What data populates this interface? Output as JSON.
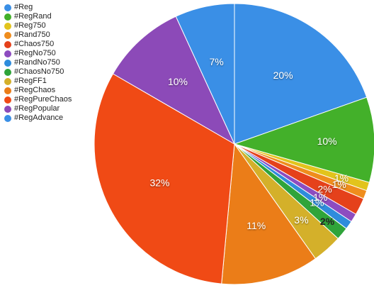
{
  "chart_data": {
    "type": "pie",
    "title": "",
    "legend_position": "top-left",
    "slices": [
      {
        "name": "#Reg",
        "label": "20%",
        "value": 20,
        "color": "#3a8fe6"
      },
      {
        "name": "#RegRand",
        "label": "10%",
        "value": 10,
        "color": "#43b02a"
      },
      {
        "name": "#Reg750",
        "label": "1%",
        "value": 1,
        "color": "#e2c41c"
      },
      {
        "name": "#Rand750",
        "label": "1%",
        "value": 1,
        "color": "#ef8d1d"
      },
      {
        "name": "#Chaos750",
        "label": "2%",
        "value": 2,
        "color": "#e5411b"
      },
      {
        "name": "#RegNo750",
        "label": "1%",
        "value": 1,
        "color": "#8d4cc0"
      },
      {
        "name": "#RandNo750",
        "label": "1%",
        "value": 1,
        "color": "#2e8cdc"
      },
      {
        "name": "#ChaosNo750",
        "label": "2%",
        "value": 1.5,
        "color": "#2fa43a"
      },
      {
        "name": "#RegFF1",
        "label": "3%",
        "value": 3.5,
        "color": "#d4b02a"
      },
      {
        "name": "#RegChaos",
        "label": "11%",
        "value": 11.5,
        "color": "#eb7d18"
      },
      {
        "name": "#RegPureChaos",
        "label": "32%",
        "value": 32.5,
        "color": "#f04a15"
      },
      {
        "name": "#RegPopular",
        "label": "10%",
        "value": 10,
        "color": "#8c4ab8"
      },
      {
        "name": "#RegAdvance",
        "label": "7%",
        "value": 7,
        "color": "#3a8fe6"
      }
    ]
  }
}
